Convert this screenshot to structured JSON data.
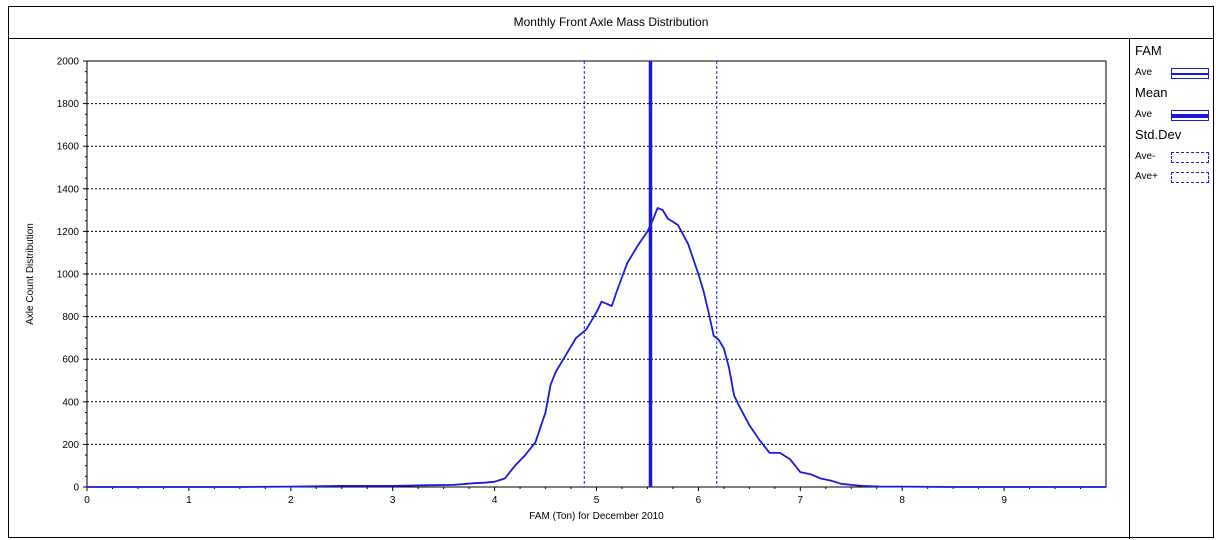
{
  "chart_data": {
    "type": "line",
    "title": "Monthly Front Axle Mass Distribution",
    "xlabel": "FAM (Ton) for December 2010",
    "ylabel": "Axle Count Distribution",
    "xlim": [
      0,
      10
    ],
    "ylim": [
      0,
      2000
    ],
    "x_ticks": [
      0,
      1,
      2,
      3,
      4,
      5,
      6,
      7,
      8,
      9
    ],
    "y_ticks": [
      0,
      200,
      400,
      600,
      800,
      1000,
      1200,
      1400,
      1600,
      1800,
      2000
    ],
    "grid": "horizontal dotted",
    "legend_position": "right",
    "colors": {
      "series": "#1a1adf",
      "grid": "#000000"
    },
    "series": [
      {
        "name": "Ave",
        "group": "FAM",
        "style": "solid",
        "x": [
          0.0,
          0.5,
          1.0,
          1.5,
          2.0,
          2.5,
          3.0,
          3.3,
          3.6,
          3.8,
          3.9,
          4.0,
          4.1,
          4.2,
          4.3,
          4.4,
          4.5,
          4.55,
          4.6,
          4.7,
          4.8,
          4.9,
          5.0,
          5.05,
          5.1,
          5.15,
          5.2,
          5.3,
          5.4,
          5.5,
          5.55,
          5.6,
          5.65,
          5.7,
          5.8,
          5.9,
          6.0,
          6.05,
          6.1,
          6.15,
          6.2,
          6.25,
          6.3,
          6.35,
          6.4,
          6.5,
          6.6,
          6.7,
          6.8,
          6.9,
          7.0,
          7.1,
          7.2,
          7.3,
          7.4,
          7.5,
          7.6,
          7.8,
          8.0,
          8.5,
          9.0,
          9.5,
          10.0
        ],
        "y": [
          0,
          0,
          0,
          0,
          2,
          5,
          5,
          8,
          10,
          18,
          20,
          25,
          40,
          100,
          150,
          210,
          350,
          480,
          540,
          620,
          700,
          740,
          820,
          870,
          860,
          850,
          920,
          1050,
          1130,
          1200,
          1250,
          1310,
          1300,
          1260,
          1230,
          1140,
          1000,
          920,
          820,
          710,
          690,
          650,
          560,
          430,
          380,
          290,
          220,
          160,
          160,
          130,
          70,
          60,
          40,
          30,
          15,
          10,
          5,
          2,
          2,
          0,
          0,
          0,
          0
        ]
      },
      {
        "name": "Ave",
        "group": "Mean",
        "style": "solid-thick",
        "x_value": 5.53
      },
      {
        "name": "Ave-",
        "group": "Std.Dev",
        "style": "dashed",
        "x_value": 4.88
      },
      {
        "name": "Ave+",
        "group": "Std.Dev",
        "style": "dashed",
        "x_value": 6.18
      }
    ]
  },
  "legend": {
    "fam_title": "FAM",
    "fam_item": "Ave",
    "mean_title": "Mean",
    "mean_item": "Ave",
    "std_title": "Std.Dev",
    "std_item_minus": "Ave-",
    "std_item_plus": "Ave+"
  }
}
